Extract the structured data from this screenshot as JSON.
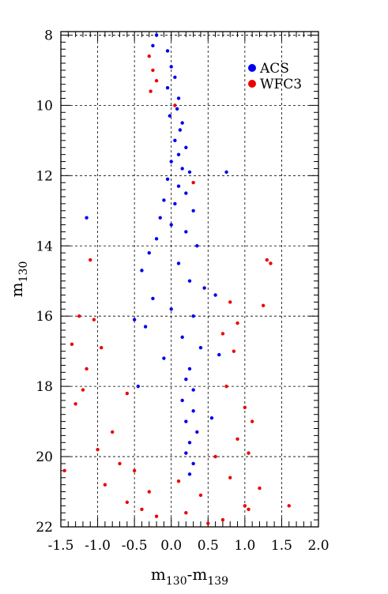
{
  "chart_data": {
    "type": "scatter",
    "xlabel": "m130-m139",
    "xlabel_main": "m",
    "xlabel_sub1": "130",
    "xlabel_mid": "-m",
    "xlabel_sub2": "139",
    "ylabel_main": "m",
    "ylabel_sub": "130",
    "xlim": [
      -1.5,
      2.0
    ],
    "ylim": [
      22,
      7.9
    ],
    "y_inverted": true,
    "x_ticks": [
      -1.5,
      -1.0,
      -0.5,
      0.0,
      0.5,
      1.0,
      1.5,
      2.0
    ],
    "x_tick_labels": [
      "-1.5",
      "-1.0",
      "-0.5",
      "0.0",
      "0.5",
      "1.0",
      "1.5",
      "2.0"
    ],
    "y_ticks": [
      8,
      10,
      12,
      14,
      16,
      18,
      20,
      22
    ],
    "y_tick_labels": [
      "8",
      "10",
      "12",
      "14",
      "16",
      "18",
      "20",
      "22"
    ],
    "grid": "dashed at major ticks",
    "legend_position": "top-right",
    "series": [
      {
        "name": "ACS",
        "color": "#0000ee",
        "points": [
          [
            -0.2,
            8.0
          ],
          [
            -0.25,
            8.3
          ],
          [
            -0.05,
            8.45
          ],
          [
            0.0,
            8.9
          ],
          [
            0.05,
            9.2
          ],
          [
            -0.05,
            9.5
          ],
          [
            0.1,
            9.8
          ],
          [
            0.08,
            10.1
          ],
          [
            -0.02,
            10.3
          ],
          [
            0.15,
            10.5
          ],
          [
            0.12,
            10.7
          ],
          [
            0.05,
            11.0
          ],
          [
            0.2,
            11.2
          ],
          [
            0.1,
            11.4
          ],
          [
            0.0,
            11.6
          ],
          [
            0.15,
            11.8
          ],
          [
            0.25,
            11.9
          ],
          [
            -0.05,
            12.1
          ],
          [
            0.1,
            12.3
          ],
          [
            0.2,
            12.5
          ],
          [
            -0.1,
            12.7
          ],
          [
            0.05,
            12.8
          ],
          [
            0.3,
            13.0
          ],
          [
            -0.15,
            13.2
          ],
          [
            0.0,
            13.4
          ],
          [
            -1.15,
            13.2
          ],
          [
            0.2,
            13.6
          ],
          [
            -0.2,
            13.8
          ],
          [
            0.35,
            14.0
          ],
          [
            -0.3,
            14.2
          ],
          [
            0.1,
            14.5
          ],
          [
            -0.4,
            14.7
          ],
          [
            0.25,
            15.0
          ],
          [
            0.45,
            15.2
          ],
          [
            -0.25,
            15.5
          ],
          [
            0.0,
            15.8
          ],
          [
            0.3,
            16.0
          ],
          [
            -0.35,
            16.3
          ],
          [
            0.15,
            16.6
          ],
          [
            0.4,
            16.9
          ],
          [
            -0.1,
            17.2
          ],
          [
            0.25,
            17.5
          ],
          [
            0.2,
            17.8
          ],
          [
            0.3,
            18.1
          ],
          [
            0.15,
            18.4
          ],
          [
            0.3,
            18.7
          ],
          [
            0.2,
            19.0
          ],
          [
            0.35,
            19.3
          ],
          [
            0.25,
            19.6
          ],
          [
            0.2,
            19.9
          ],
          [
            0.3,
            20.2
          ],
          [
            0.25,
            20.5
          ],
          [
            0.75,
            11.9
          ],
          [
            0.6,
            15.4
          ],
          [
            -0.5,
            16.1
          ],
          [
            0.55,
            18.9
          ],
          [
            0.65,
            17.1
          ],
          [
            -0.45,
            18.0
          ]
        ]
      },
      {
        "name": "WFC3",
        "color": "#ee0000",
        "points": [
          [
            -0.3,
            8.6
          ],
          [
            -0.25,
            9.0
          ],
          [
            -0.2,
            9.3
          ],
          [
            -0.28,
            9.6
          ],
          [
            0.05,
            10.0
          ],
          [
            0.3,
            12.2
          ],
          [
            -1.1,
            14.4
          ],
          [
            1.3,
            14.4
          ],
          [
            1.35,
            14.5
          ],
          [
            1.25,
            15.7
          ],
          [
            -1.25,
            16.0
          ],
          [
            -1.05,
            16.1
          ],
          [
            -1.35,
            16.8
          ],
          [
            -0.95,
            16.9
          ],
          [
            -1.15,
            17.5
          ],
          [
            -1.2,
            18.1
          ],
          [
            -1.3,
            18.5
          ],
          [
            0.8,
            15.6
          ],
          [
            0.9,
            16.2
          ],
          [
            0.7,
            16.5
          ],
          [
            0.85,
            17.0
          ],
          [
            -0.6,
            18.2
          ],
          [
            0.75,
            18.0
          ],
          [
            1.0,
            18.6
          ],
          [
            1.1,
            19.0
          ],
          [
            -0.8,
            19.3
          ],
          [
            0.9,
            19.5
          ],
          [
            1.05,
            19.9
          ],
          [
            -1.0,
            19.8
          ],
          [
            -0.7,
            20.2
          ],
          [
            0.6,
            20.0
          ],
          [
            -0.5,
            20.4
          ],
          [
            0.8,
            20.6
          ],
          [
            -0.9,
            20.8
          ],
          [
            1.2,
            20.9
          ],
          [
            -0.3,
            21.0
          ],
          [
            0.4,
            21.1
          ],
          [
            -0.6,
            21.3
          ],
          [
            1.0,
            21.4
          ],
          [
            1.6,
            21.4
          ],
          [
            -1.45,
            20.4
          ],
          [
            0.2,
            21.6
          ],
          [
            -0.2,
            21.7
          ],
          [
            0.7,
            21.8
          ],
          [
            0.5,
            21.9
          ],
          [
            1.05,
            21.5
          ],
          [
            -0.4,
            21.5
          ],
          [
            0.1,
            20.7
          ]
        ]
      }
    ]
  }
}
